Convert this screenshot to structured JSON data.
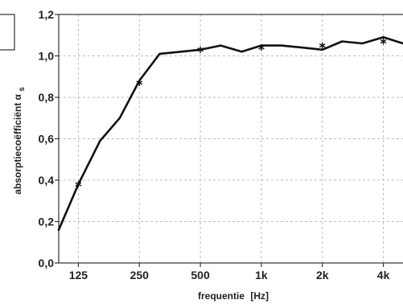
{
  "chart_data": {
    "type": "line",
    "x_scale": "log",
    "xlabel_main": "frequentie",
    "xlabel_unit": "[Hz]",
    "ylabel_main": "absorptiecoëfficiënt α",
    "ylabel_sub": "s",
    "ylim": [
      0,
      1.2
    ],
    "xlim_hz": [
      100,
      5000
    ],
    "y_ticks": [
      {
        "value": 0.0,
        "label": "0,0"
      },
      {
        "value": 0.2,
        "label": "0,2"
      },
      {
        "value": 0.4,
        "label": "0,4"
      },
      {
        "value": 0.6,
        "label": "0,6"
      },
      {
        "value": 0.8,
        "label": "0,8"
      },
      {
        "value": 1.0,
        "label": "1,0"
      },
      {
        "value": 1.2,
        "label": "1,2"
      }
    ],
    "x_ticks": [
      {
        "value": 125,
        "label": "125"
      },
      {
        "value": 250,
        "label": "250"
      },
      {
        "value": 500,
        "label": "500"
      },
      {
        "value": 1000,
        "label": "1k"
      },
      {
        "value": 2000,
        "label": "2k"
      },
      {
        "value": 4000,
        "label": "4k"
      }
    ],
    "grid": true,
    "series": [
      {
        "style": "line",
        "x": [
          100,
          125,
          160,
          200,
          250,
          315,
          400,
          500,
          630,
          800,
          1000,
          1250,
          1600,
          2000,
          2500,
          3150,
          4000,
          5000
        ],
        "y": [
          0.16,
          0.38,
          0.59,
          0.7,
          0.88,
          1.01,
          1.02,
          1.03,
          1.05,
          1.02,
          1.05,
          1.05,
          1.04,
          1.03,
          1.07,
          1.06,
          1.09,
          1.06
        ]
      },
      {
        "style": "markers",
        "marker": "asterisk",
        "x": [
          125,
          250,
          500,
          1000,
          2000,
          4000
        ],
        "y": [
          0.38,
          0.87,
          1.03,
          1.04,
          1.05,
          1.07
        ]
      }
    ]
  }
}
